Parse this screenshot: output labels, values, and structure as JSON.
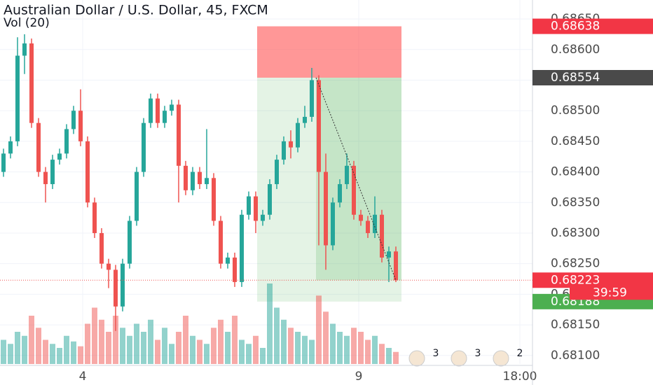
{
  "chart_data": {
    "type": "candlestick",
    "title": "Australian Dollar / U.S. Dollar, 45, FXCM",
    "subtitle": "Vol (20)",
    "up_color": "#26a69a",
    "down_color": "#ef5350",
    "ylim": [
      0.68086,
      0.68681
    ],
    "yticks": [
      {
        "value": 0.6865,
        "label": "0.68650"
      },
      {
        "value": 0.686,
        "label": "0.68600"
      },
      {
        "value": 0.6855,
        "label": "0.68550"
      },
      {
        "value": 0.685,
        "label": "0.68500"
      },
      {
        "value": 0.6845,
        "label": "0.68450"
      },
      {
        "value": 0.684,
        "label": "0.68400"
      },
      {
        "value": 0.6835,
        "label": "0.68350"
      },
      {
        "value": 0.683,
        "label": "0.68300"
      },
      {
        "value": 0.6825,
        "label": "0.68250"
      },
      {
        "value": 0.682,
        "label": "0.68200"
      },
      {
        "value": 0.6815,
        "label": "0.68150"
      },
      {
        "value": 0.681,
        "label": "0.68100"
      }
    ],
    "xlim": [
      -0.5,
      75.5
    ],
    "xticks": [
      {
        "value": 11.3,
        "label": "4"
      },
      {
        "value": 50.7,
        "label": "9"
      },
      {
        "value": 73.7,
        "label": "18:00"
      }
    ],
    "grid": true,
    "candles": [
      [
        0.684,
        0.68438,
        0.68392,
        0.6843
      ],
      [
        0.6843,
        0.68458,
        0.68422,
        0.6845
      ],
      [
        0.6845,
        0.6862,
        0.68442,
        0.6859
      ],
      [
        0.6859,
        0.68625,
        0.6856,
        0.6861
      ],
      [
        0.6861,
        0.68618,
        0.68472,
        0.6848
      ],
      [
        0.6848,
        0.68488,
        0.68392,
        0.684
      ],
      [
        0.684,
        0.68408,
        0.6835,
        0.6838
      ],
      [
        0.6838,
        0.68428,
        0.68372,
        0.6842
      ],
      [
        0.6842,
        0.68438,
        0.68412,
        0.6843
      ],
      [
        0.6843,
        0.68478,
        0.68422,
        0.6847
      ],
      [
        0.6847,
        0.68508,
        0.68462,
        0.685
      ],
      [
        0.685,
        0.68535,
        0.68442,
        0.6845
      ],
      [
        0.6845,
        0.68458,
        0.68342,
        0.6835
      ],
      [
        0.6835,
        0.68358,
        0.68292,
        0.683
      ],
      [
        0.683,
        0.68308,
        0.68242,
        0.6825
      ],
      [
        0.6825,
        0.68258,
        0.6821,
        0.6824
      ],
      [
        0.6824,
        0.68248,
        0.6814,
        0.6818
      ],
      [
        0.6818,
        0.68258,
        0.68172,
        0.6825
      ],
      [
        0.6825,
        0.68328,
        0.68242,
        0.6832
      ],
      [
        0.6832,
        0.68408,
        0.68312,
        0.684
      ],
      [
        0.684,
        0.68488,
        0.68392,
        0.6848
      ],
      [
        0.6848,
        0.68528,
        0.68472,
        0.6852
      ],
      [
        0.6852,
        0.68528,
        0.68472,
        0.6848
      ],
      [
        0.6848,
        0.68508,
        0.68472,
        0.685
      ],
      [
        0.685,
        0.68518,
        0.68492,
        0.6851
      ],
      [
        0.6851,
        0.68518,
        0.6835,
        0.6841
      ],
      [
        0.6841,
        0.68418,
        0.68362,
        0.6837
      ],
      [
        0.6837,
        0.68408,
        0.68362,
        0.684
      ],
      [
        0.684,
        0.68408,
        0.68372,
        0.6838
      ],
      [
        0.6838,
        0.6847,
        0.68372,
        0.6839
      ],
      [
        0.6839,
        0.68398,
        0.68312,
        0.6832
      ],
      [
        0.6832,
        0.68328,
        0.68242,
        0.6825
      ],
      [
        0.6825,
        0.68268,
        0.68242,
        0.6826
      ],
      [
        0.6826,
        0.68268,
        0.68212,
        0.6822
      ],
      [
        0.6822,
        0.68338,
        0.68212,
        0.6833
      ],
      [
        0.6833,
        0.68368,
        0.68322,
        0.6836
      ],
      [
        0.6836,
        0.68368,
        0.683,
        0.6832
      ],
      [
        0.6832,
        0.68338,
        0.68312,
        0.6833
      ],
      [
        0.6833,
        0.68388,
        0.68322,
        0.6838
      ],
      [
        0.6838,
        0.68428,
        0.68372,
        0.6842
      ],
      [
        0.6842,
        0.68458,
        0.68412,
        0.6845
      ],
      [
        0.6845,
        0.68468,
        0.68422,
        0.6844
      ],
      [
        0.6844,
        0.68488,
        0.68432,
        0.6848
      ],
      [
        0.6848,
        0.68508,
        0.68472,
        0.6849
      ],
      [
        0.6849,
        0.6857,
        0.68482,
        0.6855
      ],
      [
        0.6855,
        0.68558,
        0.6828,
        0.684
      ],
      [
        0.684,
        0.6843,
        0.6824,
        0.6828
      ],
      [
        0.6828,
        0.68358,
        0.68272,
        0.6835
      ],
      [
        0.6835,
        0.68388,
        0.68342,
        0.6838
      ],
      [
        0.6838,
        0.6843,
        0.68372,
        0.6841
      ],
      [
        0.6841,
        0.68418,
        0.68322,
        0.6833
      ],
      [
        0.6833,
        0.68338,
        0.68312,
        0.6832
      ],
      [
        0.6832,
        0.68328,
        0.68292,
        0.683
      ],
      [
        0.683,
        0.6836,
        0.68292,
        0.6833
      ],
      [
        0.6833,
        0.68338,
        0.68252,
        0.6826
      ],
      [
        0.6826,
        0.68278,
        0.6822,
        0.6827
      ],
      [
        0.6827,
        0.68278,
        0.6822,
        0.68223
      ]
    ],
    "volumes": [
      30,
      25,
      40,
      35,
      60,
      45,
      30,
      25,
      20,
      35,
      28,
      22,
      50,
      70,
      55,
      40,
      60,
      45,
      35,
      50,
      40,
      55,
      30,
      45,
      25,
      40,
      60,
      35,
      30,
      25,
      45,
      55,
      40,
      60,
      30,
      25,
      35,
      20,
      100,
      70,
      55,
      45,
      40,
      35,
      30,
      85,
      65,
      50,
      40,
      35,
      45,
      40,
      30,
      35,
      25,
      20,
      15
    ],
    "position": {
      "stop": 0.68638,
      "entry": 0.68554,
      "target": 0.68188,
      "stop_color": "#ff5252",
      "target_color": "#4caf50"
    },
    "price_labels": [
      {
        "value": 0.68638,
        "color": "#f23645"
      },
      {
        "value": 0.68554,
        "color": "#4a4a4a"
      },
      {
        "value": 0.68223,
        "color": "#f23645"
      },
      {
        "value": 0.68188,
        "color": "#4caf50"
      }
    ],
    "countdown": "39:59",
    "events": [
      {
        "count": 3
      },
      {
        "count": 3
      },
      {
        "count": 2
      }
    ]
  }
}
